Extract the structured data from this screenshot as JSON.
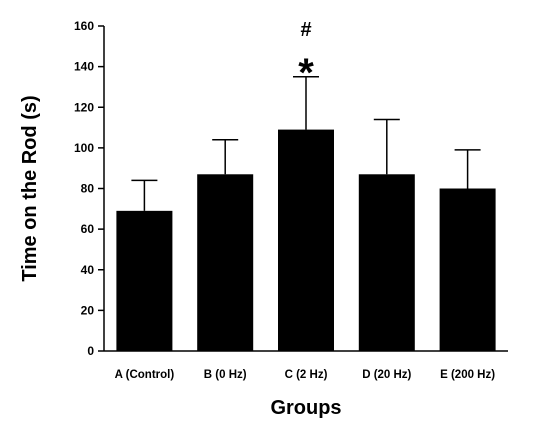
{
  "chart_data": {
    "type": "bar",
    "title": "",
    "xlabel": "Groups",
    "ylabel": "Time on the Rod (s)",
    "categories": [
      "A (Control)",
      "B (0 Hz)",
      "C (2 Hz)",
      "D (20 Hz)",
      "E (200 Hz)"
    ],
    "values": [
      69,
      87,
      109,
      87,
      80
    ],
    "error_upper": [
      15,
      17,
      26,
      27,
      19
    ],
    "ylim": [
      0,
      160
    ],
    "yticks": [
      0,
      20,
      40,
      60,
      80,
      100,
      120,
      140,
      160
    ],
    "grid": false,
    "bar_color": "#000000",
    "annotations": [
      {
        "category": "C (2 Hz)",
        "text": "#"
      },
      {
        "category": "C (2 Hz)",
        "text": "*"
      }
    ]
  }
}
